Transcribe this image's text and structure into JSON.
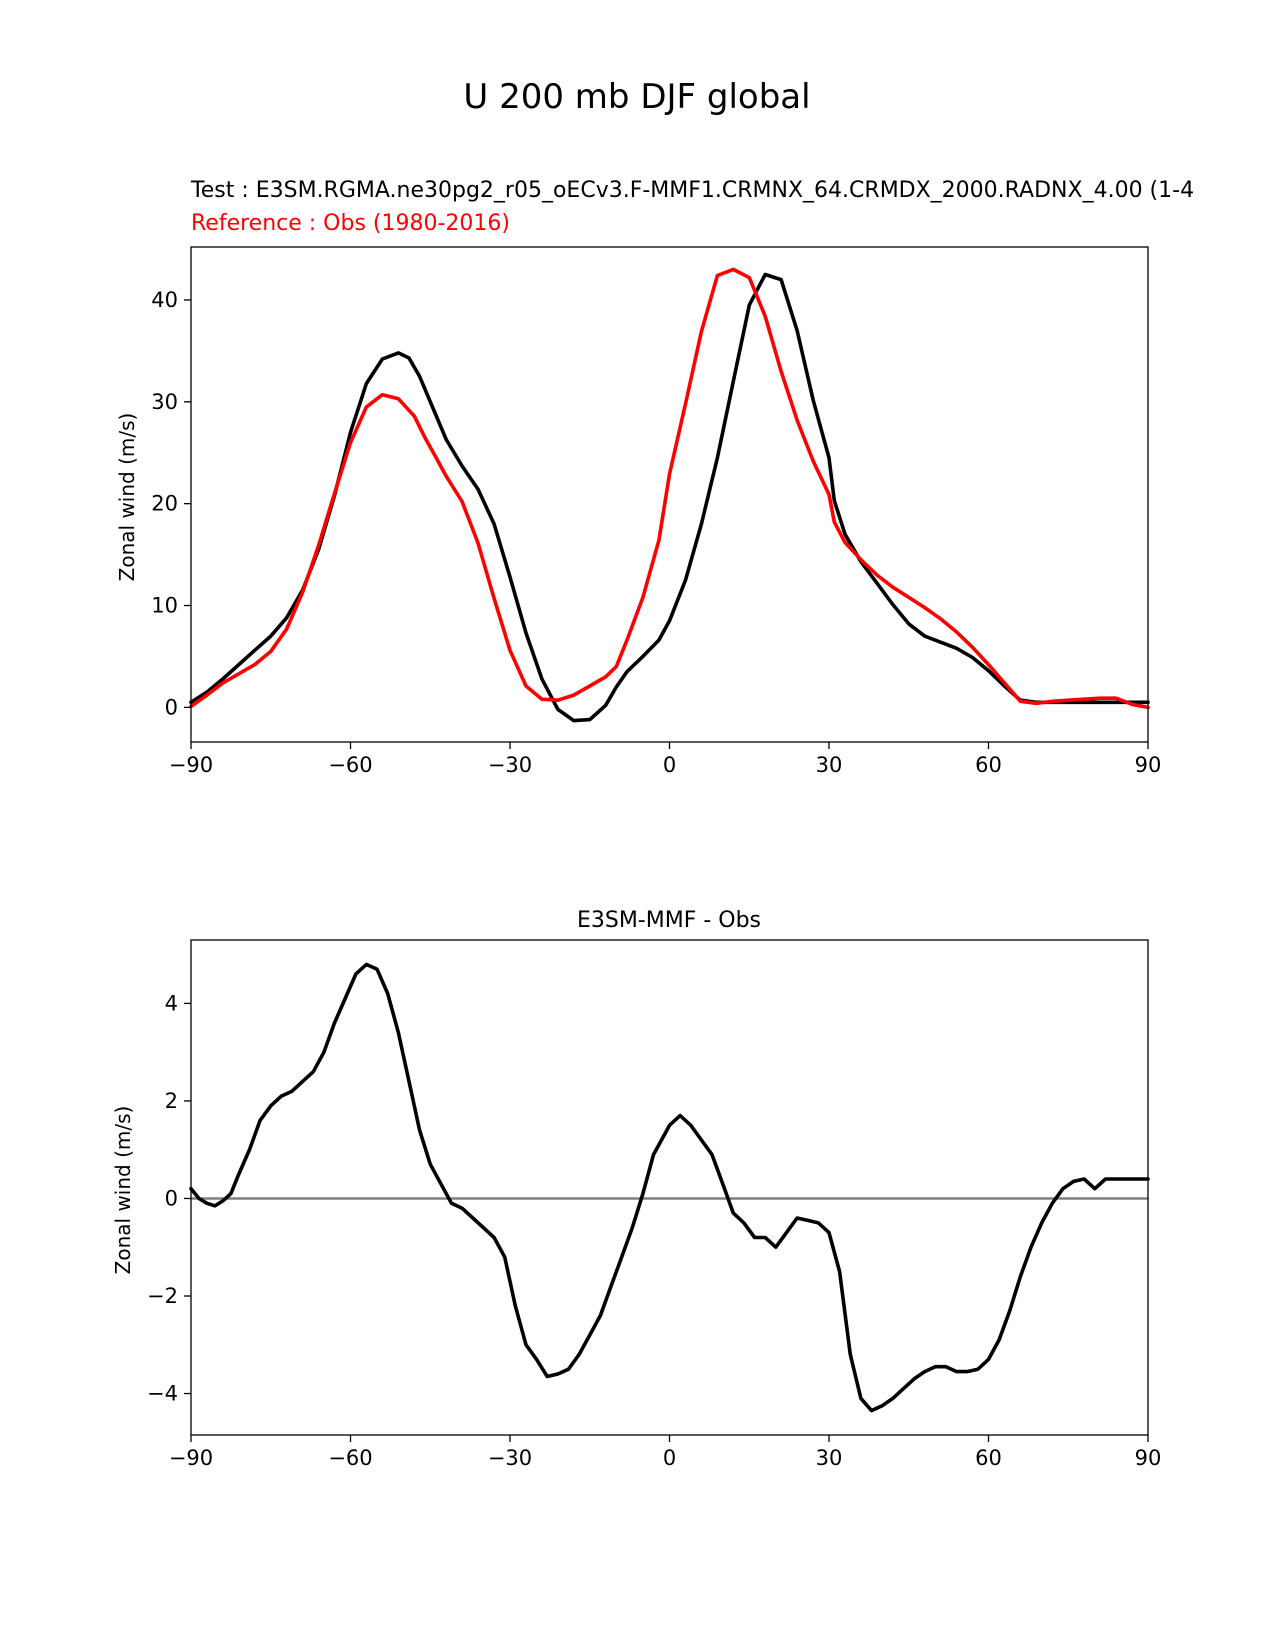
{
  "figure": {
    "title": "U 200 mb DJF global"
  },
  "colors": {
    "test": "#000000",
    "reference": "#ff0000",
    "zero_line": "#808080"
  },
  "chart_data": [
    {
      "type": "line",
      "test_label": "Test : E3SM.RGMA.ne30pg2_r05_oECv3.F-MMF1.CRMNX_64.CRMDX_2000.RADNX_4.00 (1-4",
      "reference_label": "Reference : Obs (1980-2016)",
      "xlabel": "",
      "ylabel": "Zonal wind (m/s)",
      "xlim": [
        -90,
        90
      ],
      "ylim": [
        -3.4,
        45.2
      ],
      "xticks": [
        -90,
        -60,
        -30,
        0,
        30,
        60,
        90
      ],
      "xtick_labels": [
        "−90",
        "−60",
        "−30",
        "0",
        "30",
        "60",
        "90"
      ],
      "yticks": [
        0,
        10,
        20,
        30,
        40
      ],
      "ytick_labels": [
        "0",
        "10",
        "20",
        "30",
        "40"
      ],
      "series": [
        {
          "name": "Test",
          "color": "#000000",
          "x": [
            -90,
            -87,
            -84,
            -81,
            -78,
            -75,
            -72,
            -69,
            -66,
            -63,
            -60,
            -57,
            -54,
            -51,
            -49,
            -47,
            -45,
            -42,
            -39,
            -36,
            -33,
            -30,
            -27,
            -24,
            -21,
            -18,
            -15,
            -12,
            -10,
            -8,
            -5,
            -2,
            0,
            3,
            6,
            9,
            12,
            15,
            18,
            21,
            24,
            27,
            30,
            31,
            33,
            36,
            39,
            42,
            45,
            48,
            51,
            54,
            57,
            60,
            63,
            66,
            69,
            72,
            75,
            78,
            81,
            84,
            87,
            90
          ],
          "values": [
            0.5,
            1.5,
            2.8,
            4.2,
            5.6,
            7.0,
            8.8,
            11.5,
            15.5,
            20.8,
            27.0,
            31.8,
            34.2,
            34.8,
            34.3,
            32.5,
            30.0,
            26.3,
            23.7,
            21.4,
            18.0,
            12.8,
            7.3,
            2.8,
            -0.2,
            -1.3,
            -1.2,
            0.2,
            2.0,
            3.5,
            5.0,
            6.6,
            8.5,
            12.5,
            18.0,
            24.5,
            32.0,
            39.5,
            42.5,
            42.0,
            37.0,
            30.2,
            24.5,
            20.3,
            17.0,
            14.3,
            12.2,
            10.1,
            8.2,
            7.0,
            6.4,
            5.8,
            4.9,
            3.6,
            2.1,
            0.7,
            0.5,
            0.5,
            0.5,
            0.5,
            0.5,
            0.5,
            0.5,
            0.5
          ]
        },
        {
          "name": "Reference",
          "color": "#ff0000",
          "x": [
            -90,
            -87,
            -84,
            -81,
            -78,
            -75,
            -72,
            -69,
            -66,
            -63,
            -60,
            -57,
            -54,
            -51,
            -48,
            -46,
            -44,
            -42,
            -39,
            -36,
            -33,
            -30,
            -27,
            -24,
            -21,
            -18,
            -15,
            -12,
            -10,
            -8,
            -5,
            -2,
            0,
            3,
            6,
            9,
            12,
            15,
            18,
            21,
            24,
            27,
            30,
            31,
            33,
            36,
            39,
            42,
            45,
            48,
            51,
            54,
            57,
            60,
            63,
            66,
            69,
            72,
            75,
            78,
            81,
            84,
            87,
            90
          ],
          "values": [
            0.1,
            1.2,
            2.4,
            3.3,
            4.2,
            5.5,
            7.7,
            11.3,
            15.9,
            21.0,
            26.0,
            29.5,
            30.7,
            30.3,
            28.6,
            26.5,
            24.6,
            22.7,
            20.2,
            16.1,
            10.7,
            5.6,
            2.1,
            0.8,
            0.7,
            1.2,
            2.1,
            3.0,
            4.0,
            6.6,
            10.8,
            16.4,
            22.9,
            29.8,
            36.9,
            42.4,
            43.0,
            42.2,
            38.4,
            33.0,
            28.2,
            24.2,
            20.9,
            18.2,
            16.2,
            14.5,
            13.0,
            11.8,
            10.8,
            9.8,
            8.7,
            7.4,
            5.9,
            4.2,
            2.4,
            0.6,
            0.4,
            0.6,
            0.7,
            0.8,
            0.9,
            0.9,
            0.3,
            0.0
          ]
        }
      ]
    },
    {
      "type": "line",
      "title": "E3SM-MMF - Obs",
      "xlabel": "",
      "ylabel": "Zonal wind (m/s)",
      "xlim": [
        -90,
        90
      ],
      "ylim": [
        -4.85,
        5.3
      ],
      "xticks": [
        -90,
        -60,
        -30,
        0,
        30,
        60,
        90
      ],
      "xtick_labels": [
        "−90",
        "−60",
        "−30",
        "0",
        "30",
        "60",
        "90"
      ],
      "yticks": [
        -4,
        -2,
        0,
        2,
        4
      ],
      "ytick_labels": [
        "−4",
        "−2",
        "0",
        "2",
        "4"
      ],
      "zero_line": 0,
      "series": [
        {
          "name": "E3SM-MMF - Obs",
          "color": "#000000",
          "x": [
            -90,
            -88.5,
            -87,
            -85.5,
            -84,
            -82.5,
            -81,
            -79,
            -77,
            -75,
            -73,
            -71,
            -69,
            -67,
            -65,
            -63,
            -61,
            -59,
            -57,
            -55,
            -53,
            -51,
            -49,
            -47,
            -45,
            -43,
            -41,
            -39,
            -37,
            -35,
            -33,
            -31,
            -29,
            -27,
            -25,
            -23,
            -21,
            -19,
            -17,
            -15,
            -13,
            -11,
            -9,
            -7,
            -5,
            -3,
            -1,
            0,
            2,
            4,
            6,
            8,
            10,
            12,
            14,
            16,
            18,
            20,
            22,
            24,
            26,
            28,
            30,
            32,
            34,
            36,
            38,
            40,
            42,
            44,
            46,
            48,
            50,
            52,
            54,
            56,
            58,
            60,
            62,
            64,
            66,
            68,
            70,
            72,
            74,
            76,
            78,
            80,
            82,
            84,
            86,
            88,
            90
          ],
          "values": [
            0.2,
            0.0,
            -0.1,
            -0.15,
            -0.05,
            0.1,
            0.5,
            1.0,
            1.6,
            1.9,
            2.1,
            2.2,
            2.4,
            2.6,
            3.0,
            3.6,
            4.1,
            4.6,
            4.8,
            4.7,
            4.2,
            3.4,
            2.4,
            1.4,
            0.7,
            0.3,
            -0.1,
            -0.2,
            -0.4,
            -0.6,
            -0.8,
            -1.2,
            -2.2,
            -3.0,
            -3.3,
            -3.65,
            -3.6,
            -3.5,
            -3.2,
            -2.8,
            -2.4,
            -1.8,
            -1.2,
            -0.6,
            0.1,
            0.9,
            1.3,
            1.5,
            1.7,
            1.5,
            1.2,
            0.9,
            0.3,
            -0.3,
            -0.5,
            -0.8,
            -0.8,
            -1.0,
            -0.7,
            -0.4,
            -0.45,
            -0.5,
            -0.7,
            -1.5,
            -3.2,
            -4.1,
            -4.35,
            -4.25,
            -4.1,
            -3.9,
            -3.7,
            -3.55,
            -3.45,
            -3.45,
            -3.55,
            -3.55,
            -3.5,
            -3.3,
            -2.9,
            -2.3,
            -1.6,
            -1.0,
            -0.5,
            -0.1,
            0.2,
            0.35,
            0.4,
            0.2,
            0.4,
            0.4,
            0.4,
            0.4,
            0.4
          ]
        }
      ]
    }
  ]
}
